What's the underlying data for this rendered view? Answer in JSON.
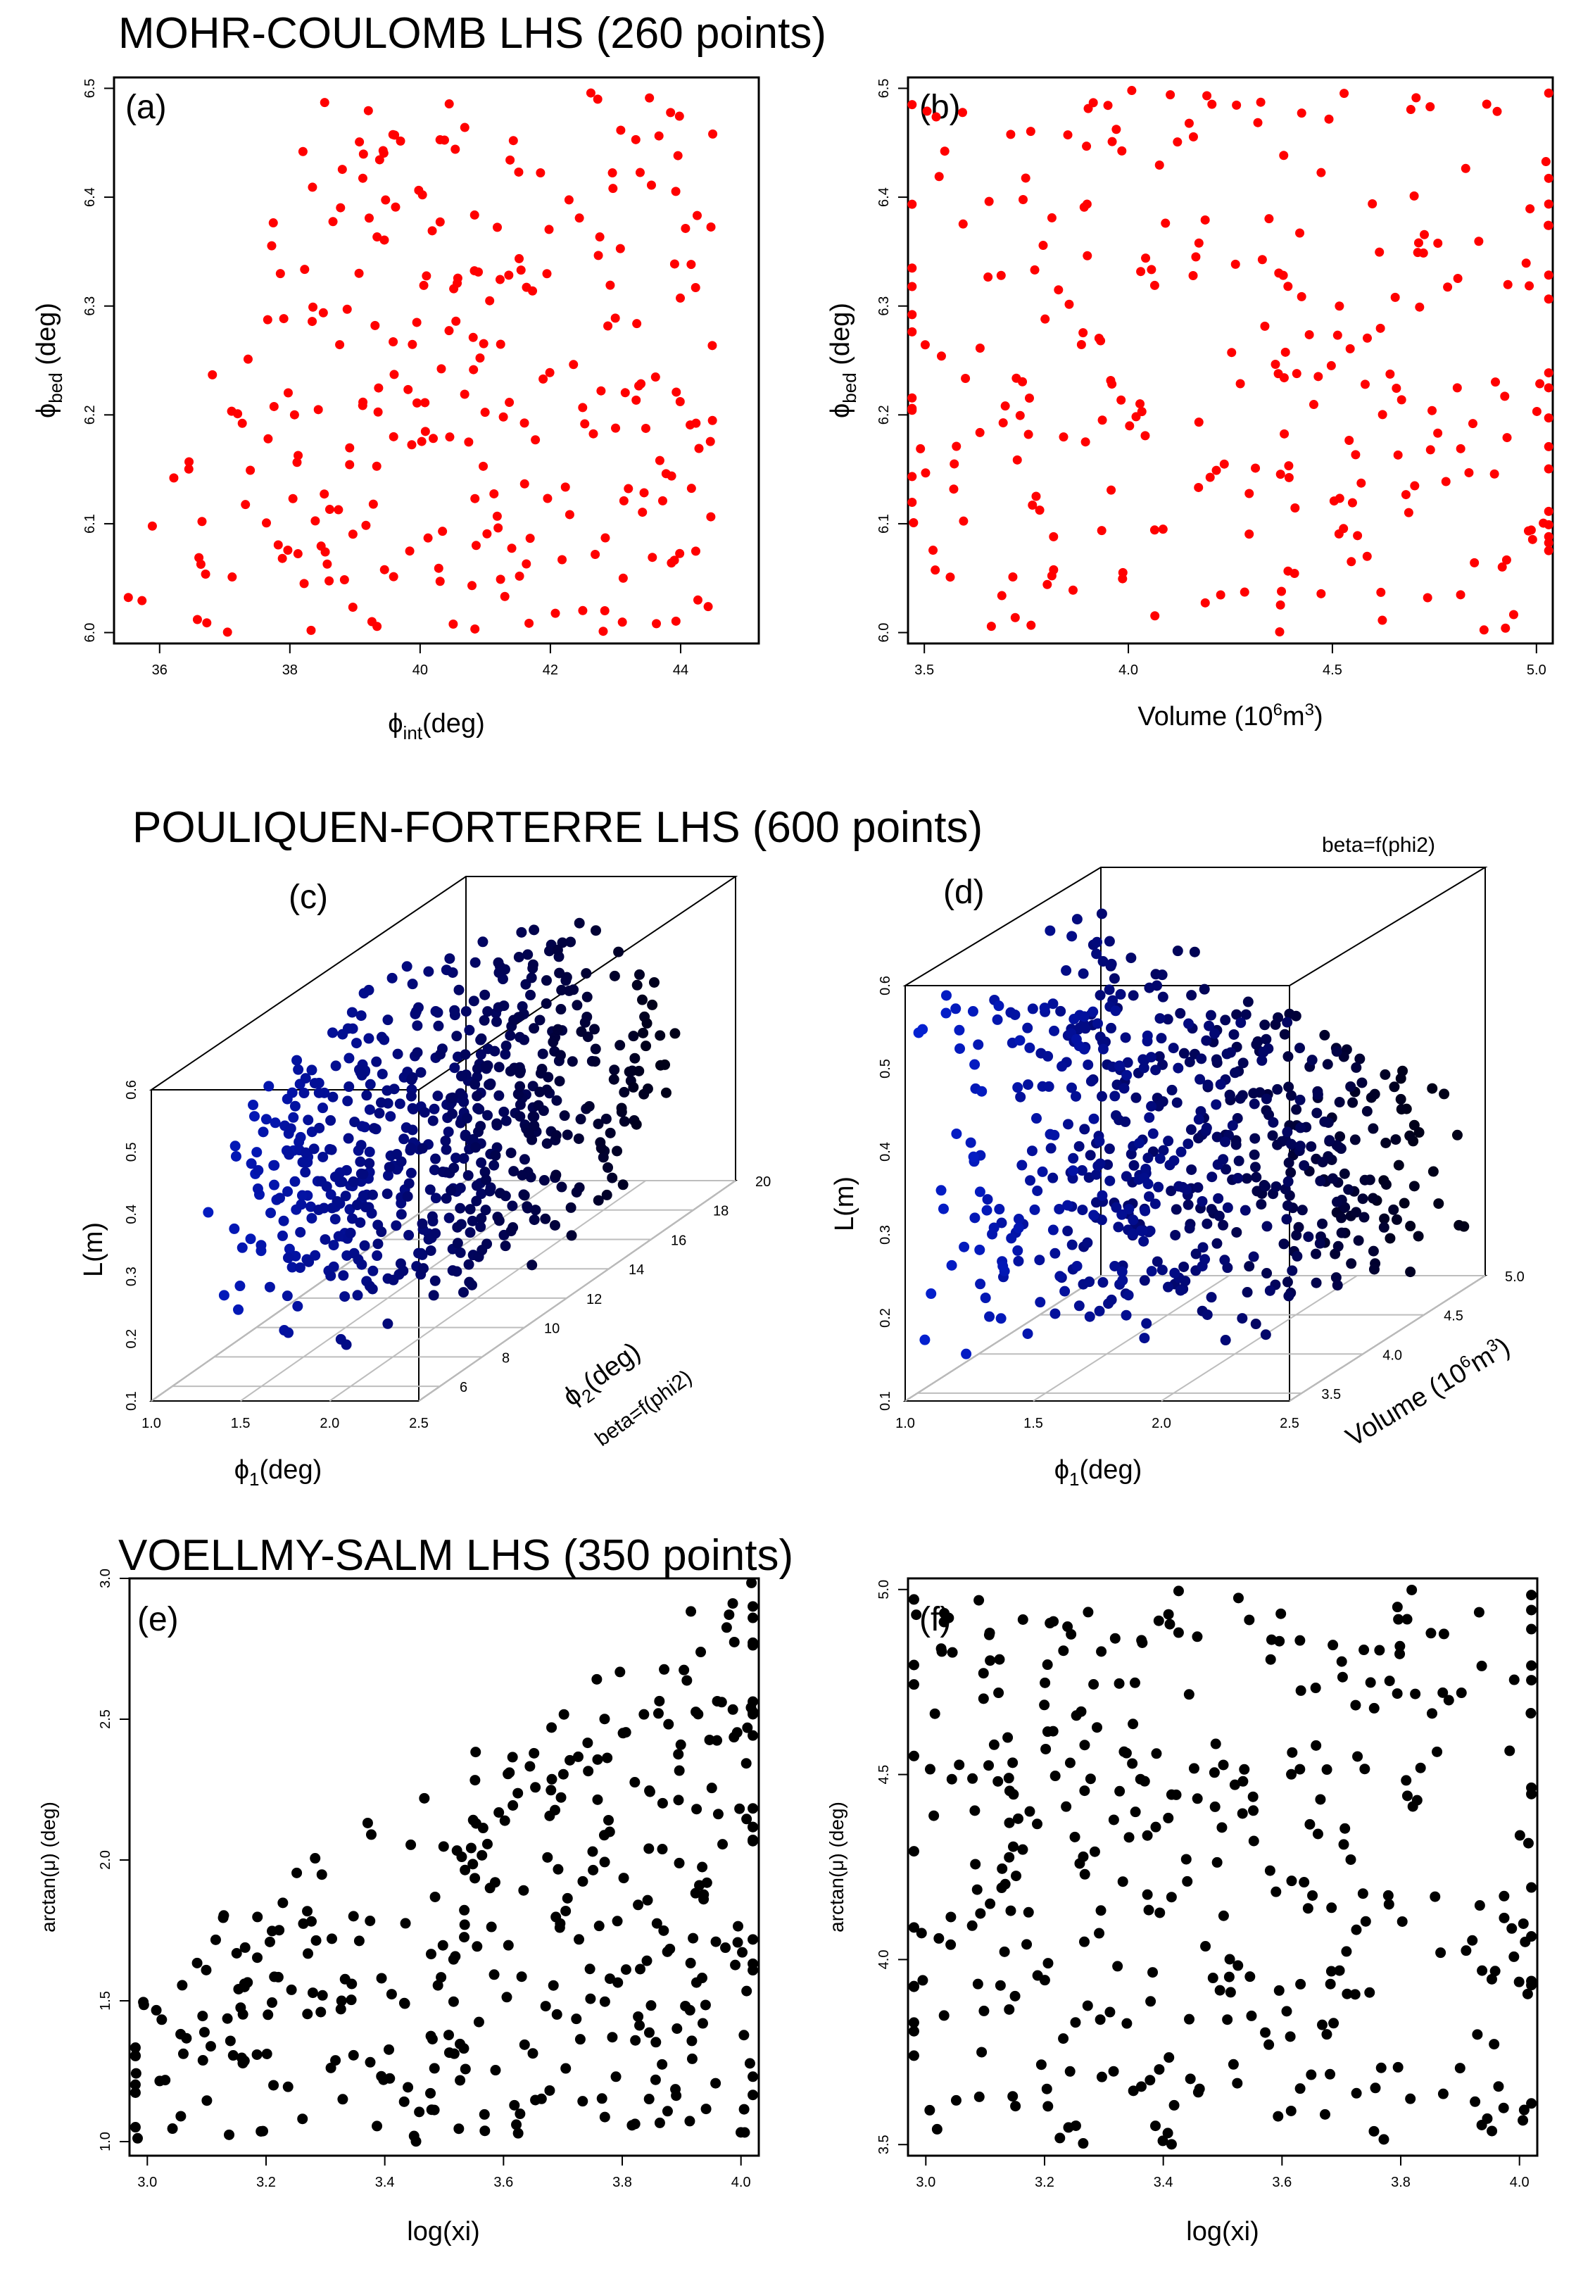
{
  "sections": {
    "mc": "MOHR-COULOMB LHS (260 points)",
    "pf": "POULIQUEN-FORTERRE LHS (600 points)",
    "vs": "VOELLMY-SALM LHS (350 points)"
  },
  "colors": {
    "red_points": "#ff0000",
    "black_points": "#000000",
    "blue_points": "#1a3bd8",
    "dark_navy_points": "#0a1446"
  },
  "chart_data": [
    {
      "id": "a",
      "type": "scatter",
      "label": "(a)",
      "xlabel": "ϕint(deg)",
      "ylabel": "ϕbed (deg)",
      "xlim": [
        35.3,
        45.2
      ],
      "ylim": [
        5.99,
        6.51
      ],
      "xticks": [
        36,
        38,
        40,
        42,
        44
      ],
      "yticks": [
        6.0,
        6.1,
        6.2,
        6.3,
        6.4,
        6.5
      ],
      "color": "#ff0000",
      "n_points": 260
    },
    {
      "id": "b",
      "type": "scatter",
      "label": "(b)",
      "xlabel": "Volume (10^6m^3)",
      "ylabel": "ϕbed (deg)",
      "xlim": [
        3.46,
        5.04
      ],
      "ylim": [
        5.99,
        6.51
      ],
      "xticks": [
        3.5,
        4.0,
        4.5,
        5.0
      ],
      "yticks": [
        6.0,
        6.1,
        6.2,
        6.3,
        6.4,
        6.5
      ],
      "color": "#ff0000",
      "n_points": 260
    },
    {
      "id": "c",
      "type": "scatter",
      "label": "(c)",
      "xlabel": "ϕ1(deg)",
      "ylabel": "L(m)",
      "zlabel": "ϕ2(deg)",
      "note": "beta=f(phi2)",
      "xlim": [
        1.0,
        2.5
      ],
      "ylim": [
        0.1,
        0.6
      ],
      "zlim": [
        5,
        20
      ],
      "xticks": [
        1.0,
        1.5,
        2.0,
        2.5
      ],
      "yticks": [
        0.1,
        0.2,
        0.3,
        0.4,
        0.5,
        0.6
      ],
      "zticks": [
        6,
        8,
        10,
        12,
        14,
        16,
        18,
        20
      ],
      "color": "depth-shaded blue to black",
      "n_points": 600
    },
    {
      "id": "d",
      "type": "scatter",
      "label": "(d)",
      "xlabel": "ϕ1(deg)",
      "ylabel": "L(m)",
      "zlabel": "Volume (10^6m^3)",
      "note": "beta=f(phi2)",
      "xlim": [
        1.0,
        2.5
      ],
      "ylim": [
        0.1,
        0.6
      ],
      "zlim": [
        3.4,
        5.0
      ],
      "xticks": [
        1.0,
        1.5,
        2.0,
        2.5
      ],
      "yticks": [
        0.1,
        0.2,
        0.3,
        0.4,
        0.5,
        0.6
      ],
      "zticks": [
        3.5,
        4.0,
        4.5,
        5.0
      ],
      "color": "depth-shaded blue to black",
      "n_points": 600
    },
    {
      "id": "e",
      "type": "scatter",
      "label": "(e)",
      "xlabel": "log(xi)",
      "ylabel": "arctan(μ) (deg)",
      "xlim": [
        2.97,
        4.03
      ],
      "ylim": [
        0.95,
        3.0
      ],
      "xticks": [
        3.0,
        3.2,
        3.4,
        3.6,
        3.8,
        4.0
      ],
      "yticks": [
        1.0,
        1.5,
        2.0,
        2.5,
        3.0
      ],
      "color": "#000000",
      "n_points": 350
    },
    {
      "id": "f",
      "type": "scatter",
      "label": "(f)",
      "xlabel": "log(xi)",
      "ylabel": "arctan(μ) (deg)",
      "xlim": [
        2.97,
        4.03
      ],
      "ylim": [
        3.47,
        5.03
      ],
      "xticks": [
        3.0,
        3.2,
        3.4,
        3.6,
        3.8,
        4.0
      ],
      "yticks": [
        3.5,
        4.0,
        4.5,
        5.0
      ],
      "color": "#000000",
      "n_points": 350
    }
  ]
}
